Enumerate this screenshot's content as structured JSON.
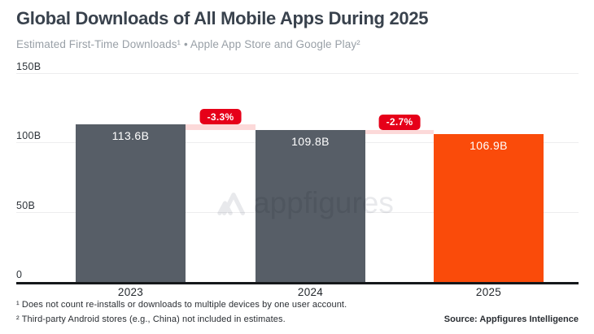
{
  "header": {
    "title": "Global Downloads of All Mobile Apps During 2025",
    "subtitle": "Estimated First-Time Downloads¹ • Apple App Store and Google Play²"
  },
  "chart_data": {
    "type": "bar",
    "title": "Global Downloads of All Mobile Apps During 2025",
    "subtitle": "Estimated First-Time Downloads¹ • Apple App Store and Google Play²",
    "categories": [
      "2023",
      "2024",
      "2025"
    ],
    "values": [
      113.6,
      109.8,
      106.9
    ],
    "value_labels": [
      "113.6B",
      "109.8B",
      "106.9B"
    ],
    "unit": "billions of downloads",
    "ylim": [
      0,
      150
    ],
    "yticks": [
      {
        "label": "150B",
        "value": 150
      },
      {
        "label": "100B",
        "value": 100
      },
      {
        "label": "50B",
        "value": 50
      },
      {
        "label": "0",
        "value": 0
      }
    ],
    "grid": true,
    "change_badges": [
      {
        "label": "-3.3%",
        "between": [
          "2023",
          "2024"
        ]
      },
      {
        "label": "-2.7%",
        "between": [
          "2024",
          "2025"
        ]
      }
    ],
    "bar_colors": [
      "#575E67",
      "#575E67",
      "#FA4B0A"
    ],
    "colors": {
      "bar_default": "#575E67",
      "bar_highlight": "#FA4B0A",
      "badge": "#E60019",
      "decline_band": "#FCD9D9",
      "gridline": "#EDEDEE",
      "baseline": "#15181B",
      "title": "#39424D",
      "subtitle": "#99A0A7"
    }
  },
  "watermark": {
    "text": "appfigures"
  },
  "footnotes": {
    "note1": "¹ Does not count re-installs or downloads to multiple devices by one user account.",
    "note2": "² Third-party Android stores (e.g., China) not included in estimates.",
    "source": "Source: Appfigures Intelligence"
  }
}
